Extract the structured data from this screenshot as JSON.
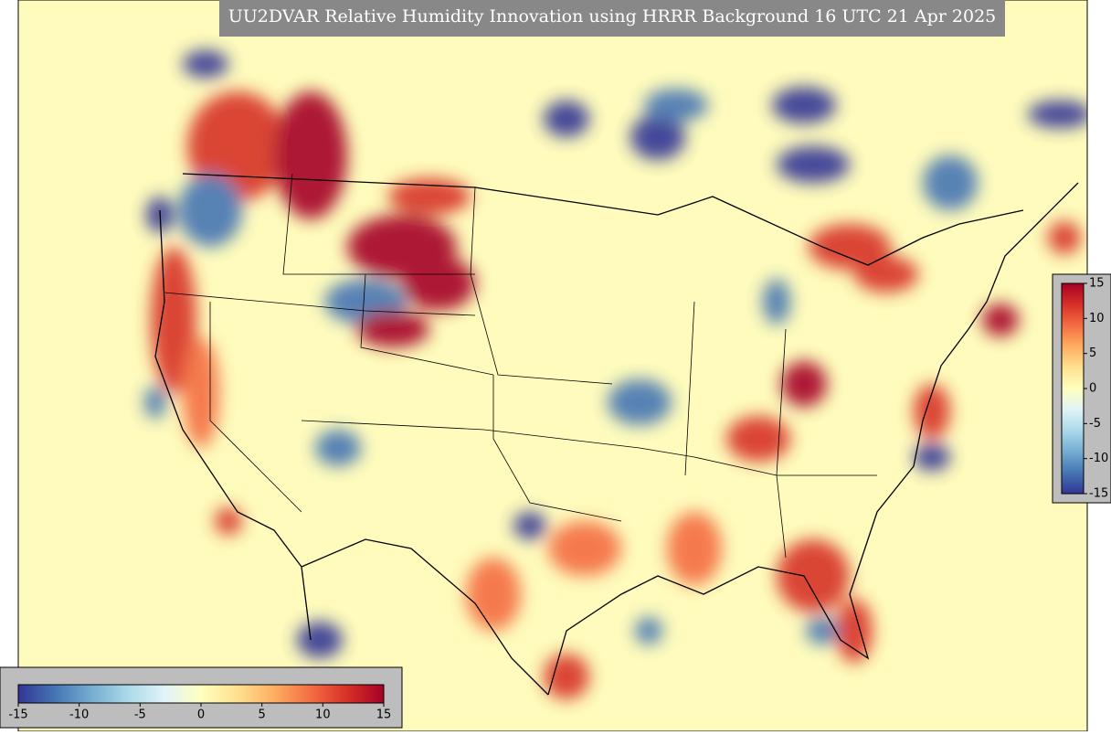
{
  "title": "UU2DVAR Relative Humidity Innovation using HRRR Background 16 UTC 21 Apr 2025",
  "colorbar": {
    "lim": [
      -15,
      15
    ],
    "ticks": [
      -15,
      -10,
      -5,
      0,
      5,
      10,
      15
    ],
    "colors": [
      "#313695",
      "#4575b4",
      "#74add1",
      "#abd9e9",
      "#e0f3f8",
      "#ffffbf",
      "#fee090",
      "#fdae61",
      "#f46d43",
      "#d73027",
      "#a50026"
    ]
  }
}
